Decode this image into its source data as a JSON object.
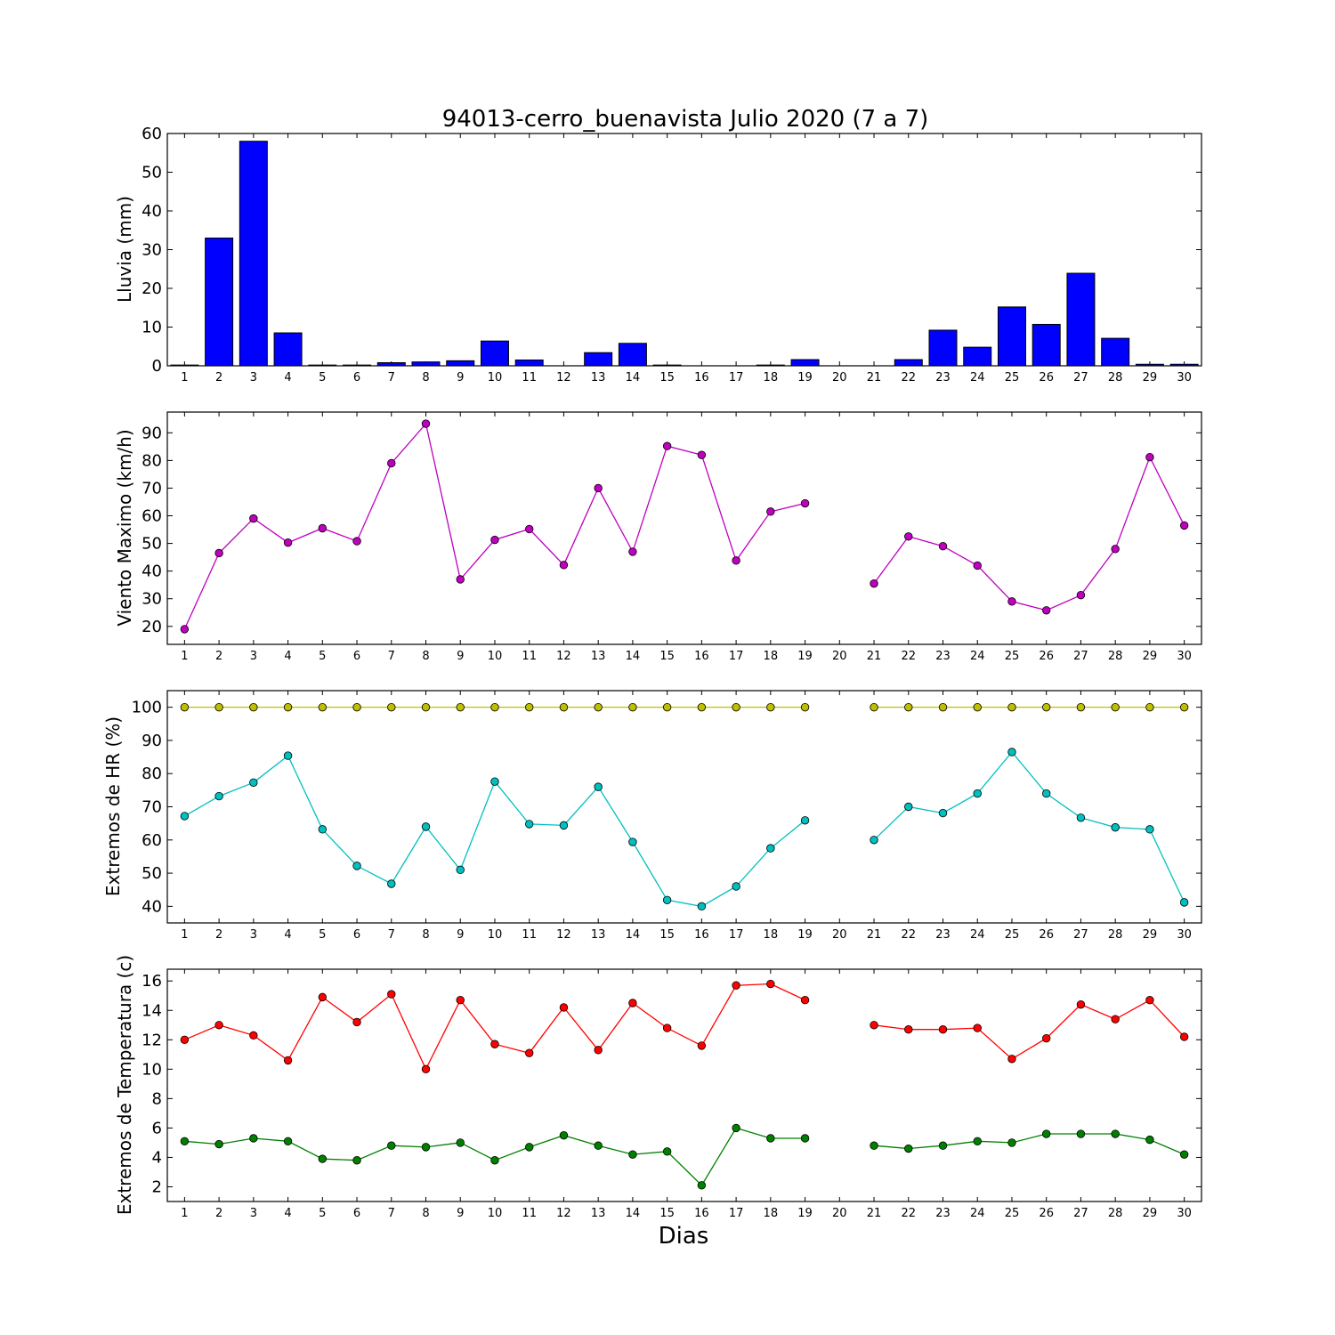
{
  "chart_data": {
    "title": "94013-cerro_buenavista Julio 2020  (7 a 7)",
    "xlabel": "Dias",
    "days": [
      1,
      2,
      3,
      4,
      5,
      6,
      7,
      8,
      9,
      10,
      11,
      12,
      13,
      14,
      15,
      16,
      17,
      18,
      19,
      20,
      21,
      22,
      23,
      24,
      25,
      26,
      27,
      28,
      29,
      30
    ],
    "panels": [
      {
        "type": "bar",
        "ylabel": "Lluvia (mm)",
        "ylim": [
          0,
          60
        ],
        "yticks": [
          0,
          10,
          20,
          30,
          40,
          50,
          60
        ],
        "series": [
          {
            "color": "#0000ff",
            "values": [
              0.2,
              33,
              58,
              8.5,
              0.2,
              0.2,
              0.8,
              1.0,
              1.3,
              6.4,
              1.5,
              0,
              3.4,
              5.8,
              0.2,
              0,
              0,
              0.2,
              1.6,
              0,
              0,
              1.6,
              9.2,
              4.8,
              15.2,
              10.7,
              23.9,
              7.1,
              0.4,
              0.4
            ]
          }
        ]
      },
      {
        "type": "line",
        "ylabel": "Viento Maximo (km/h)",
        "ylim": [
          13.5,
          97.5
        ],
        "yticks": [
          20,
          30,
          40,
          50,
          60,
          70,
          80,
          90
        ],
        "series": [
          {
            "color": "#bf00bf",
            "values": [
              19,
              46.5,
              59,
              50.3,
              55.5,
              50.8,
              79,
              93.3,
              37,
              51.3,
              55.2,
              42.2,
              70,
              47,
              85.2,
              82,
              43.8,
              61.5,
              64.5,
              null,
              35.5,
              52.5,
              49,
              42,
              29,
              25.8,
              31.3,
              48,
              81.2,
              56.5
            ]
          }
        ]
      },
      {
        "type": "line",
        "ylabel": "Extremos de HR (%)",
        "ylim": [
          35,
          105
        ],
        "yticks": [
          40,
          50,
          60,
          70,
          80,
          90,
          100
        ],
        "series": [
          {
            "color": "#bfbf00",
            "values": [
              100,
              100,
              100,
              100,
              100,
              100,
              100,
              100,
              100,
              100,
              100,
              100,
              100,
              100,
              100,
              100,
              100,
              100,
              100,
              null,
              100,
              100,
              100,
              100,
              100,
              100,
              100,
              100,
              100,
              100
            ]
          },
          {
            "color": "#00bfbf",
            "values": [
              67.2,
              73.2,
              77.3,
              85.4,
              63.2,
              52.2,
              46.8,
              64,
              51,
              77.6,
              64.8,
              64.4,
              76,
              59.4,
              41.9,
              40,
              46,
              57.5,
              65.9,
              null,
              60,
              70,
              68.1,
              74,
              86.5,
              74,
              66.7,
              63.8,
              63.2,
              41.2
            ]
          }
        ]
      },
      {
        "type": "line",
        "ylabel": "Extremos de Temperatura (c)",
        "ylim": [
          1,
          16.8
        ],
        "yticks": [
          2,
          4,
          6,
          8,
          10,
          12,
          14,
          16
        ],
        "series": [
          {
            "color": "#ff0000",
            "values": [
              12,
              13,
              12.3,
              10.6,
              14.9,
              13.2,
              15.1,
              10,
              14.7,
              11.7,
              11.1,
              14.2,
              11.3,
              14.5,
              12.8,
              11.6,
              15.7,
              15.8,
              14.7,
              null,
              13,
              12.7,
              12.7,
              12.8,
              10.7,
              12.1,
              14.4,
              13.4,
              14.7,
              12.2
            ]
          },
          {
            "color": "#008000",
            "values": [
              5.1,
              4.9,
              5.3,
              5.1,
              3.9,
              3.8,
              4.8,
              4.7,
              5,
              3.8,
              4.7,
              5.5,
              4.8,
              4.2,
              4.4,
              2.1,
              6,
              5.3,
              5.3,
              null,
              4.8,
              4.6,
              4.8,
              5.1,
              5,
              5.6,
              5.6,
              5.6,
              5.2,
              4.2
            ]
          }
        ]
      }
    ]
  }
}
